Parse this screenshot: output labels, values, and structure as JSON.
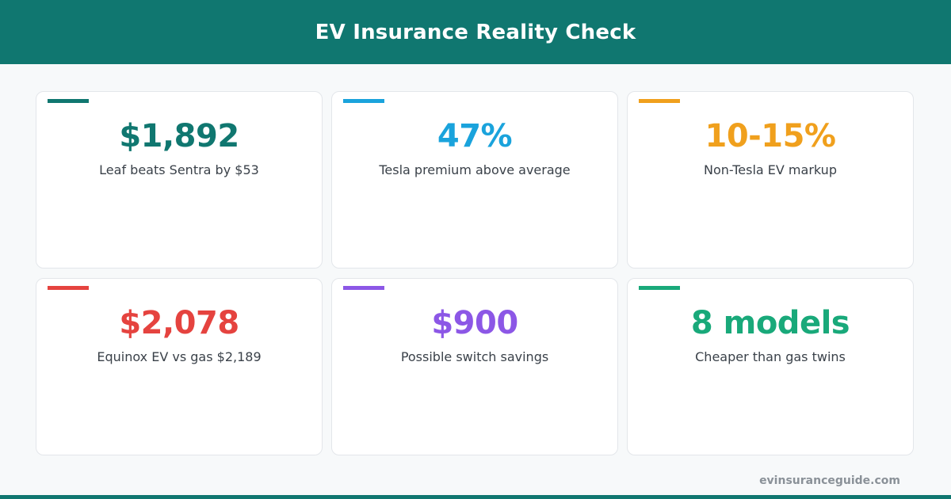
{
  "header": {
    "title": "EV Insurance Reality Check"
  },
  "cards": [
    {
      "value": "$1,892",
      "label": "Leaf beats Sentra by $53",
      "color": "#107770"
    },
    {
      "value": "47%",
      "label": "Tesla premium above average",
      "color": "#1aa3dc"
    },
    {
      "value": "10-15%",
      "label": "Non-Tesla EV markup",
      "color": "#f0a01d"
    },
    {
      "value": "$2,078",
      "label": "Equinox EV vs gas $2,189",
      "color": "#e5433f"
    },
    {
      "value": "$900",
      "label": "Possible switch savings",
      "color": "#8c57e6"
    },
    {
      "value": "8 models",
      "label": "Cheaper than gas twins",
      "color": "#19a97a"
    }
  ],
  "footer": {
    "url": "evinsuranceguide.com"
  },
  "colors": {
    "header_bg": "#107770",
    "background": "#f7f9fa"
  }
}
